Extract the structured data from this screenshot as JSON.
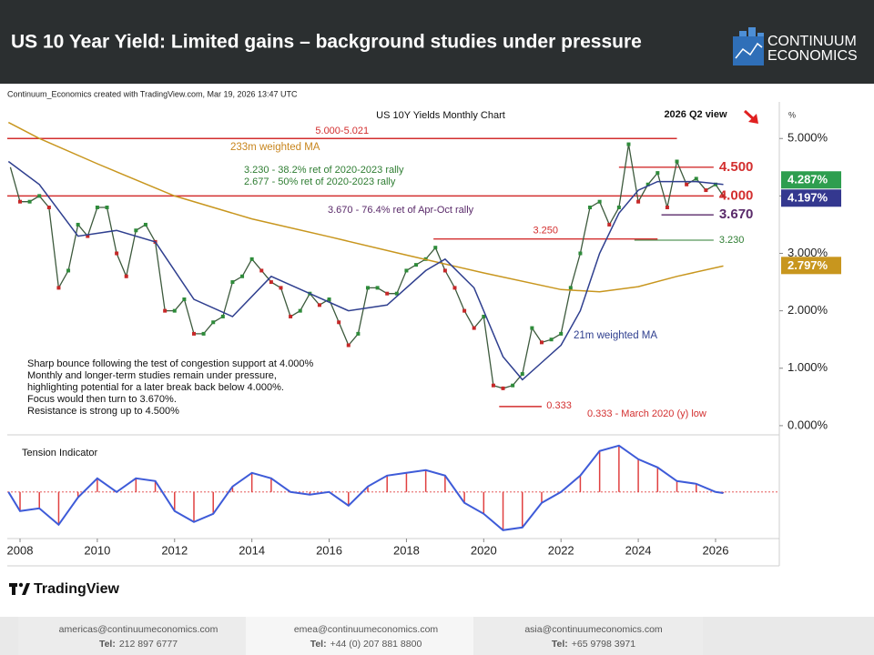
{
  "header": {
    "title": "US 10 Year Yield: Limited gains – background studies under pressure",
    "logo": [
      "CONTINUUM",
      "ECONOMICS"
    ]
  },
  "credit": "Continuum_Economics created with TradingView.com, Mar 19, 2026 13:47 UTC",
  "view": "2026 Q2 view",
  "notes": [
    "Sharp bounce following the test of congestion support at 4.000%",
    "Monthly and longer-term studies remain under pressure,",
    "highlighting potential for a later break back below 4.000%.",
    "Focus would then turn to 3.670%.",
    "Resistance is strong up to 4.500%"
  ],
  "chart_annotations": [
    "3.230 - 38.2% ret of 2020-2023 rally",
    "2.677 - 50% ret of 2020-2023 rally",
    "3.670 - 76.4% ret of Apr-Oct rally",
    "0.333 - March 2020 (y) low"
  ],
  "brand": "TradingView",
  "footer": [
    {
      "email": "americas@continuumeconomics.com",
      "tel_label": "Tel:",
      "tel": "212 897 6777"
    },
    {
      "email": "emea@continuumeconomics.com",
      "tel_label": "Tel:",
      "tel": "+44 (0) 207 881 8800"
    },
    {
      "email": "asia@continuumeconomics.com",
      "tel_label": "Tel:",
      "tel": "+65 9798 3971"
    }
  ],
  "chart_data": [
    {
      "type": "line",
      "title": "US 10Y Yields Monthly Chart",
      "unit": "%",
      "xlim": [
        2007.67,
        2027.65
      ],
      "ylim": [
        -0.16,
        5.59
      ],
      "xticks": [
        2008,
        2010,
        2012,
        2014,
        2016,
        2018,
        2020,
        2022,
        2024,
        2026
      ],
      "yticks": [
        {
          "value": 0,
          "label": "0.000%"
        },
        {
          "value": 1,
          "label": "1.000%"
        },
        {
          "value": 2,
          "label": "2.000%"
        },
        {
          "value": 3,
          "label": "3.000%"
        },
        {
          "value": 4,
          "label": "4.000%"
        },
        {
          "value": 5,
          "label": "5.000%"
        }
      ],
      "series": [
        {
          "color": "#3d5a3d",
          "x": [
            2007.75,
            2008,
            2008.25,
            2008.5,
            2008.75,
            2009,
            2009.25,
            2009.5,
            2009.75,
            2010,
            2010.25,
            2010.5,
            2010.75,
            2011,
            2011.25,
            2011.5,
            2011.75,
            2012,
            2012.25,
            2012.5,
            2012.75,
            2013,
            2013.25,
            2013.5,
            2013.75,
            2014,
            2014.25,
            2014.5,
            2014.75,
            2015,
            2015.25,
            2015.5,
            2015.75,
            2016,
            2016.25,
            2016.5,
            2016.75,
            2017,
            2017.25,
            2017.5,
            2017.75,
            2018,
            2018.25,
            2018.5,
            2018.75,
            2019,
            2019.25,
            2019.5,
            2019.75,
            2020,
            2020.25,
            2020.5,
            2020.75,
            2021,
            2021.25,
            2021.5,
            2021.75,
            2022,
            2022.25,
            2022.5,
            2022.75,
            2023,
            2023.25,
            2023.5,
            2023.75,
            2024,
            2024.25,
            2024.5,
            2024.75,
            2025,
            2025.25,
            2025.5,
            2025.75,
            2026,
            2026.2
          ],
          "values": [
            4.5,
            3.9,
            3.9,
            4.0,
            3.8,
            2.4,
            2.7,
            3.5,
            3.3,
            3.8,
            3.8,
            3.0,
            2.6,
            3.4,
            3.5,
            3.2,
            2.0,
            2.0,
            2.2,
            1.6,
            1.6,
            1.8,
            1.9,
            2.5,
            2.6,
            2.9,
            2.7,
            2.5,
            2.4,
            1.9,
            2.0,
            2.3,
            2.1,
            2.2,
            1.8,
            1.4,
            1.6,
            2.4,
            2.4,
            2.3,
            2.3,
            2.7,
            2.8,
            2.9,
            3.1,
            2.7,
            2.4,
            2.0,
            1.7,
            1.9,
            0.7,
            0.65,
            0.7,
            0.9,
            1.7,
            1.45,
            1.5,
            1.6,
            2.4,
            3.0,
            3.8,
            3.9,
            3.5,
            3.8,
            4.9,
            3.9,
            4.2,
            4.4,
            3.8,
            4.6,
            4.2,
            4.3,
            4.1,
            4.2,
            4.0
          ]
        },
        {
          "name": "233m weighted MA",
          "color": "#c8961e",
          "x": [
            2007.7,
            2008.5,
            2010,
            2012,
            2014,
            2016,
            2018,
            2020,
            2022,
            2023,
            2024,
            2025,
            2026.2
          ],
          "values": [
            5.28,
            5.0,
            4.56,
            4.0,
            3.6,
            3.29,
            2.97,
            2.66,
            2.37,
            2.33,
            2.42,
            2.6,
            2.78
          ]
        },
        {
          "name": "21m weighted MA",
          "color": "#2f3f8f",
          "x": [
            2007.7,
            2008.5,
            2009.5,
            2010.5,
            2011.5,
            2012.5,
            2013.5,
            2014.5,
            2015.5,
            2016.5,
            2017.5,
            2018.5,
            2019,
            2019.75,
            2020.5,
            2021,
            2021.5,
            2022,
            2022.5,
            2023,
            2023.5,
            2024,
            2024.5,
            2025,
            2025.5,
            2026.2
          ],
          "values": [
            4.6,
            4.2,
            3.3,
            3.4,
            3.2,
            2.2,
            1.9,
            2.6,
            2.3,
            2.0,
            2.1,
            2.7,
            2.9,
            2.4,
            1.2,
            0.8,
            1.1,
            1.4,
            2.0,
            3.0,
            3.7,
            4.1,
            4.25,
            4.25,
            4.25,
            4.2
          ]
        }
      ],
      "levels": [
        {
          "value": 5.0,
          "label": "5.000-5.021",
          "color": "#d32f2f",
          "x_range": [
            2007.67,
            2025.0
          ]
        },
        {
          "value": 4.5,
          "label": "4.500",
          "color": "#d32f2f",
          "x_range": [
            2023.5,
            2025.95
          ]
        },
        {
          "value": 4.0,
          "label": "4.000",
          "color": "#d32f2f",
          "x_range": [
            2007.67,
            2025.95
          ]
        },
        {
          "value": 3.67,
          "label": "3.670",
          "color": "#5a2a6a",
          "x_range": [
            2024.6,
            2025.95
          ]
        },
        {
          "value": 3.25,
          "label": "3.250",
          "color": "#d32f2f",
          "x_range": [
            2018.7,
            2024.5
          ]
        },
        {
          "value": 3.23,
          "label": "3.230",
          "color": "#2e7d32",
          "x_range": [
            2023.9,
            2025.95
          ]
        },
        {
          "value": 0.333,
          "label": "0.333",
          "color": "#d32f2f",
          "x_range": [
            2020.4,
            2021.5
          ]
        }
      ],
      "price_tags": [
        {
          "value": 4.287,
          "label": "4.287%",
          "color": "#2e9e4f"
        },
        {
          "value": 4.197,
          "label": "4.197%",
          "color": "#34388f"
        },
        {
          "value": 2.797,
          "label": "2.797%",
          "color": "#c8961e"
        }
      ]
    },
    {
      "type": "oscillator",
      "title": "Tension Indicator",
      "ylim": [
        -0.82,
        0.93
      ],
      "xlim": [
        2007.67,
        2027.65
      ],
      "line_color": "#3e5bd8",
      "bar_color": "#e04040",
      "x": [
        2007.7,
        2008,
        2008.5,
        2009,
        2009.5,
        2010,
        2010.5,
        2011,
        2011.5,
        2012,
        2012.5,
        2013,
        2013.5,
        2014,
        2014.5,
        2015,
        2015.5,
        2016,
        2016.5,
        2017,
        2017.5,
        2018,
        2018.5,
        2019,
        2019.5,
        2020,
        2020.5,
        2021,
        2021.5,
        2022,
        2022.5,
        2023,
        2023.5,
        2024,
        2024.5,
        2025,
        2025.5,
        2026,
        2026.2
      ],
      "values": [
        0.0,
        -0.35,
        -0.3,
        -0.6,
        -0.1,
        0.25,
        0.0,
        0.25,
        0.2,
        -0.35,
        -0.55,
        -0.4,
        0.1,
        0.35,
        0.25,
        0.0,
        -0.05,
        0.0,
        -0.25,
        0.1,
        0.3,
        0.35,
        0.4,
        0.3,
        -0.2,
        -0.4,
        -0.7,
        -0.65,
        -0.2,
        0.0,
        0.3,
        0.75,
        0.85,
        0.6,
        0.45,
        0.2,
        0.15,
        0.0,
        -0.02
      ]
    }
  ]
}
